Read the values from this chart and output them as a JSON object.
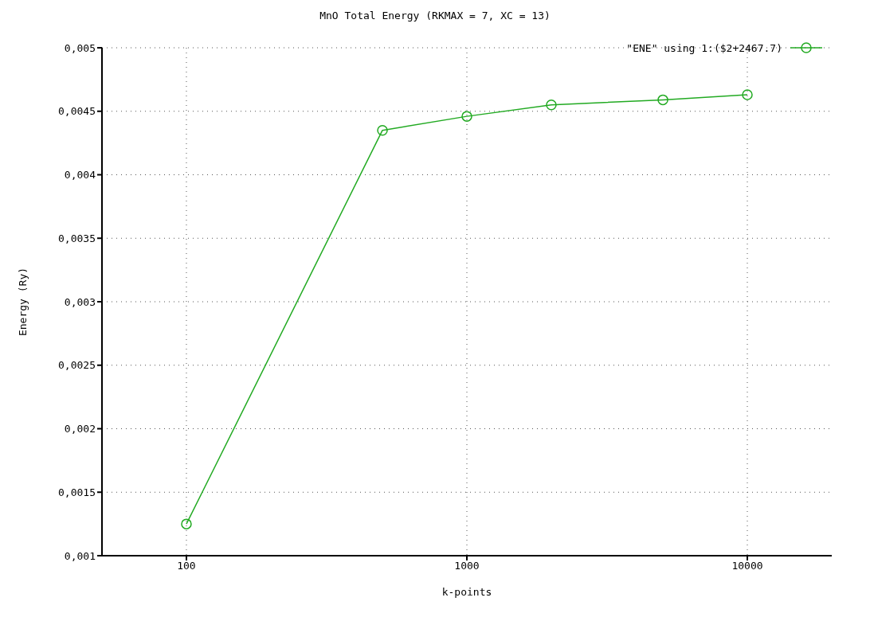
{
  "chart_data": {
    "type": "line",
    "title": "MnO Total Energy (RKMAX = 7, XC = 13)",
    "xlabel": "k-points",
    "ylabel": "Energy (Ry)",
    "x": [
      100,
      500,
      1000,
      2000,
      5000,
      10000
    ],
    "series": [
      {
        "name": "\"ENE\" using 1:($2+2467.7)",
        "color": "#22aa22",
        "values": [
          0.00125,
          0.00435,
          0.00446,
          0.00455,
          0.00459,
          0.00463
        ]
      }
    ],
    "log": "x",
    "xlim": [
      50,
      20000
    ],
    "xticks": [
      100,
      1000,
      10000
    ],
    "ylim": [
      0.001,
      0.005
    ],
    "yticks": [
      {
        "value": 0.001,
        "label": "0,001"
      },
      {
        "value": 0.0015,
        "label": "0,0015"
      },
      {
        "value": 0.002,
        "label": "0,002"
      },
      {
        "value": 0.0025,
        "label": "0,0025"
      },
      {
        "value": 0.003,
        "label": "0,003"
      },
      {
        "value": 0.0035,
        "label": "0,0035"
      },
      {
        "value": 0.004,
        "label": "0,004"
      },
      {
        "value": 0.0045,
        "label": "0,0045"
      },
      {
        "value": 0.005,
        "label": "0,005"
      }
    ],
    "grid": true,
    "legend": "top right",
    "marker": "circle",
    "line_style": "solid"
  }
}
